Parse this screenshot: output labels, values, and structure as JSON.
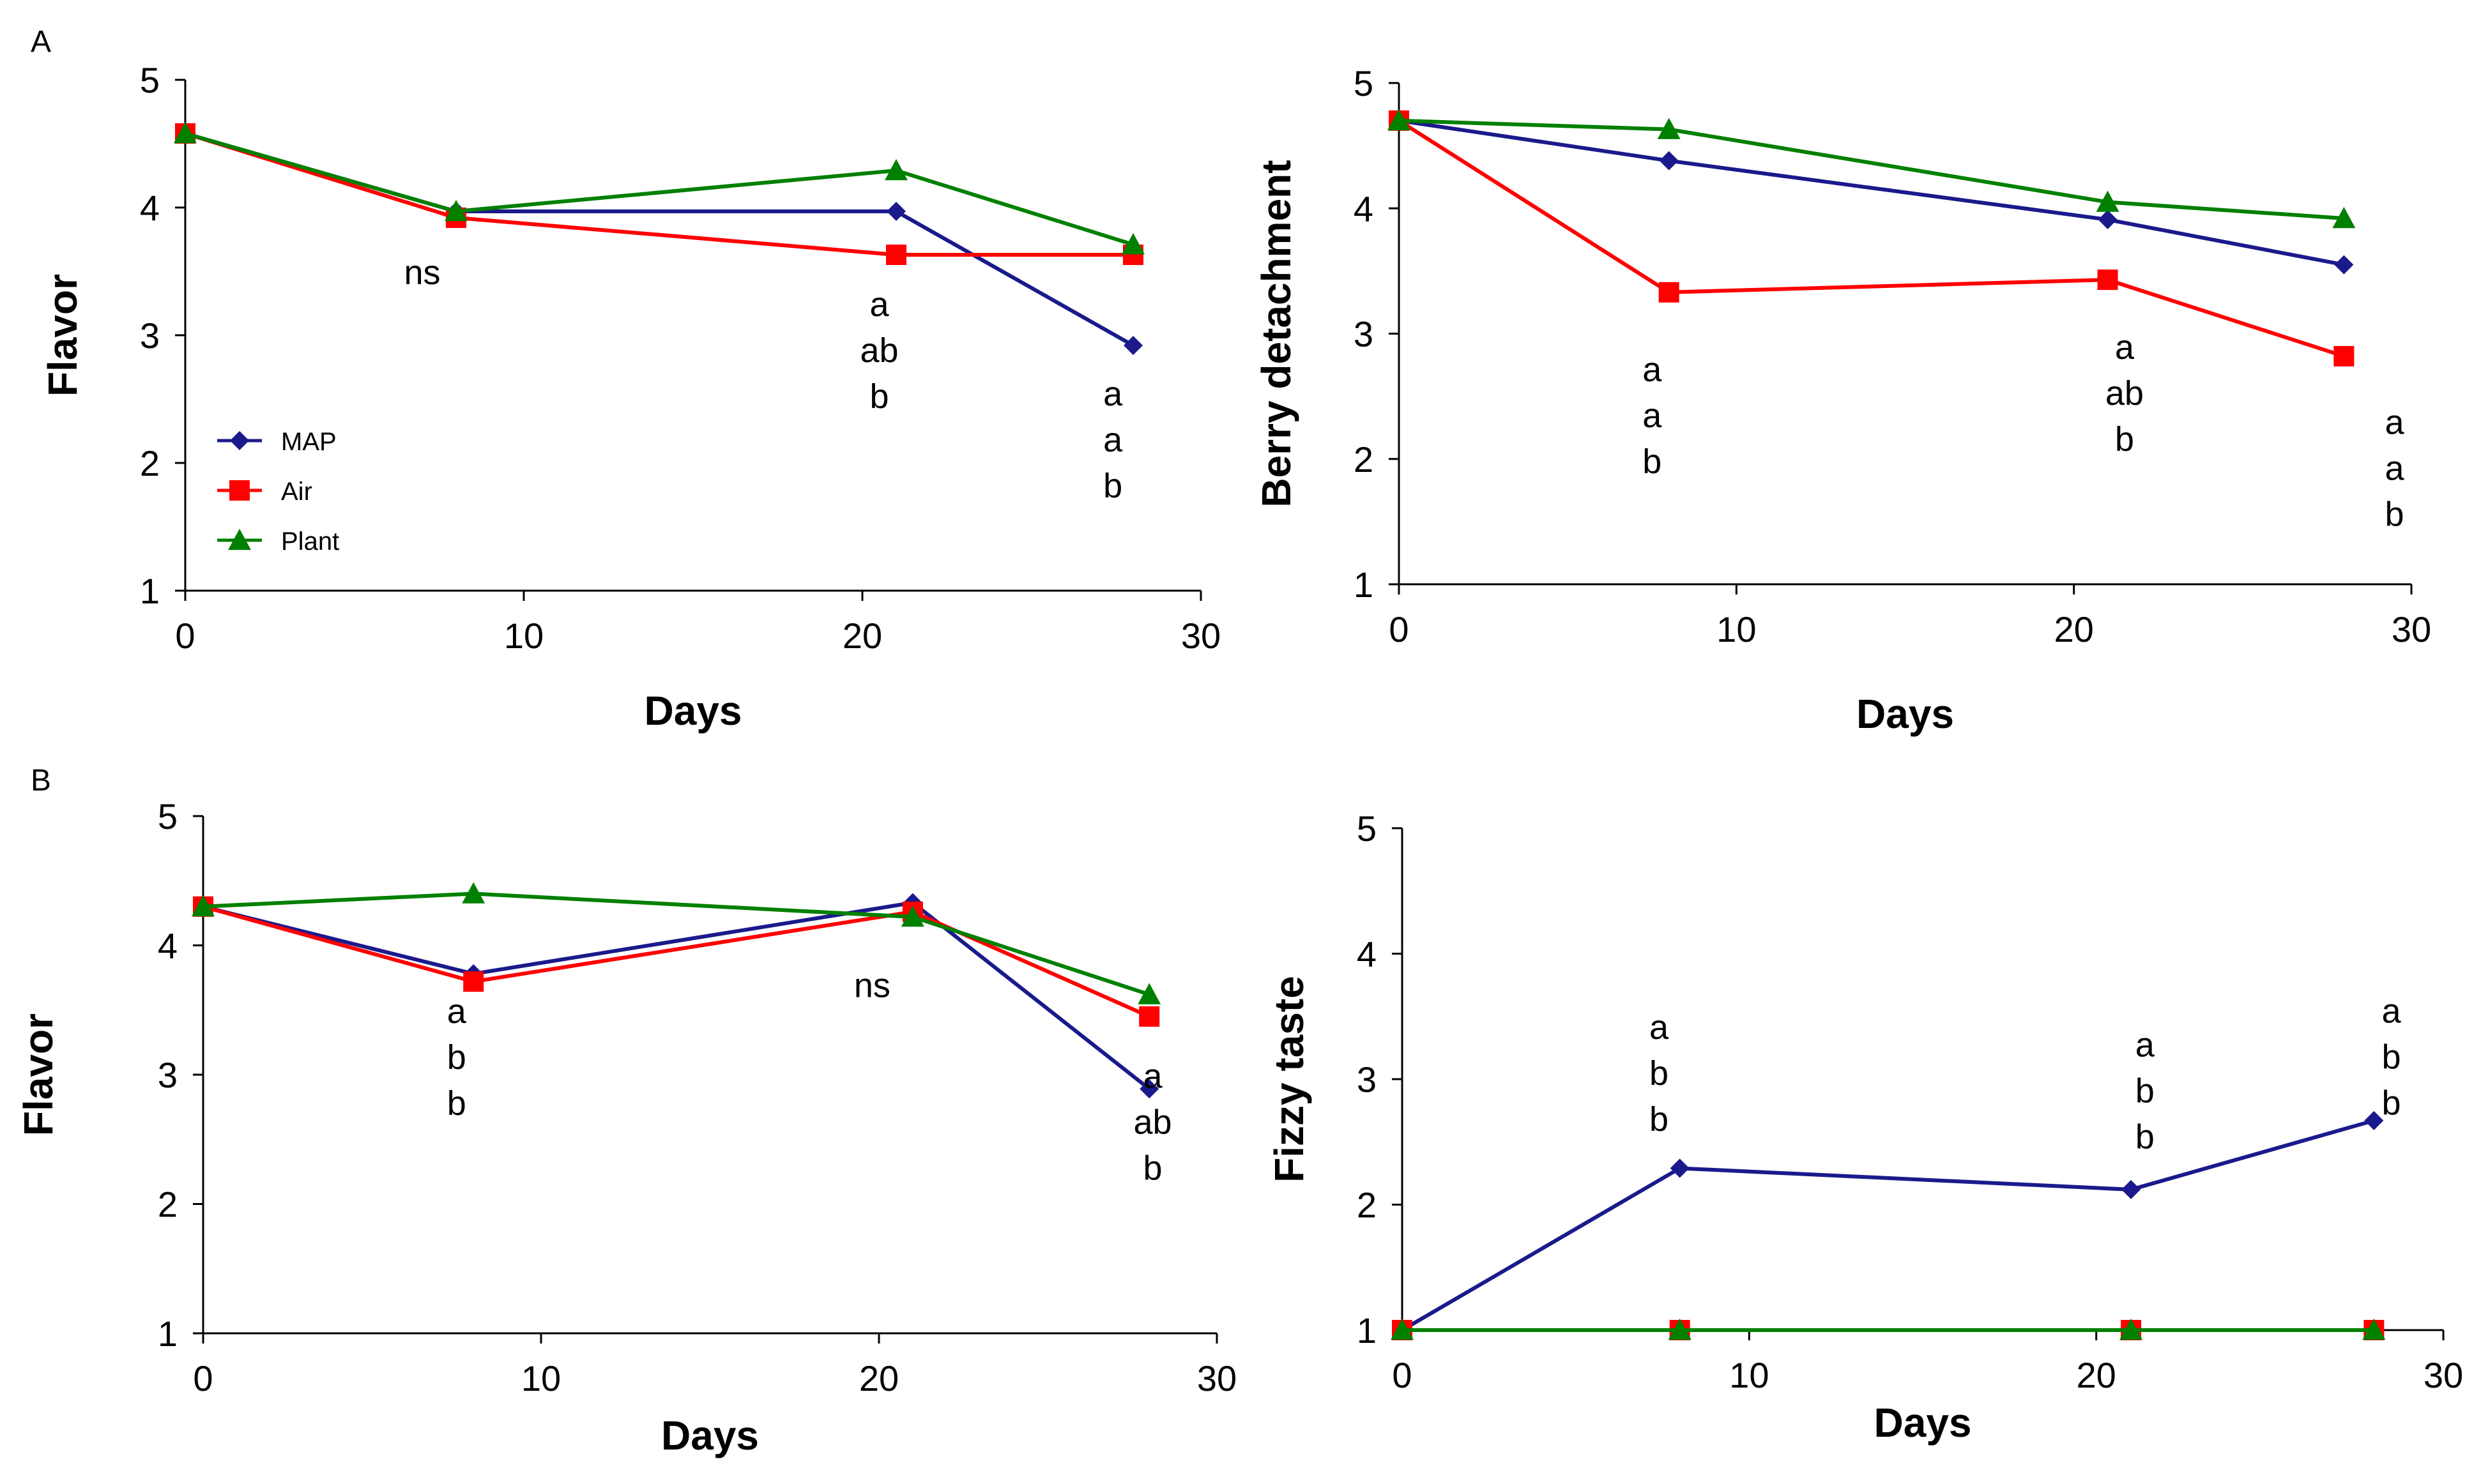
{
  "panels": {
    "A": "A",
    "B": "B"
  },
  "legend": [
    {
      "name": "MAP",
      "color": "#1a1a8c",
      "marker": "diamond"
    },
    {
      "name": "Air",
      "color": "#ff0000",
      "marker": "square"
    },
    {
      "name": "Plant",
      "color": "#008000",
      "marker": "triangle"
    }
  ],
  "chart_data": [
    {
      "type": "line",
      "title": "",
      "xlabel": "Days",
      "ylabel": "Flavor",
      "xlim": [
        0,
        30
      ],
      "ylim": [
        1,
        5
      ],
      "xticks": [
        0,
        10,
        20,
        30
      ],
      "yticks": [
        1,
        2,
        3,
        4,
        5
      ],
      "x": [
        0,
        8,
        21,
        28
      ],
      "series": [
        {
          "name": "MAP",
          "values": [
            4.58,
            3.97,
            3.97,
            2.92
          ]
        },
        {
          "name": "Air",
          "values": [
            4.58,
            3.92,
            3.63,
            3.63
          ]
        },
        {
          "name": "Plant",
          "values": [
            4.58,
            3.97,
            4.29,
            3.71
          ]
        }
      ],
      "annotations": [
        {
          "x": 7.0,
          "y": 3.4,
          "lines": [
            "ns"
          ]
        },
        {
          "x": 20.5,
          "y": 3.15,
          "lines": [
            "a",
            "ab",
            "b"
          ]
        },
        {
          "x": 27.4,
          "y": 2.45,
          "lines": [
            "a",
            "a",
            "b"
          ]
        }
      ],
      "legend": "left"
    },
    {
      "type": "line",
      "title": "",
      "xlabel": "Days",
      "ylabel": "Berry detachment",
      "xlim": [
        0,
        30
      ],
      "ylim": [
        1,
        5
      ],
      "xticks": [
        0,
        10,
        20,
        30
      ],
      "yticks": [
        1,
        2,
        3,
        4,
        5
      ],
      "x": [
        0,
        8,
        21,
        28
      ],
      "series": [
        {
          "name": "MAP",
          "values": [
            4.7,
            4.38,
            3.91,
            3.55
          ]
        },
        {
          "name": "Air",
          "values": [
            4.7,
            3.33,
            3.43,
            2.82
          ]
        },
        {
          "name": "Plant",
          "values": [
            4.7,
            4.63,
            4.05,
            3.92
          ]
        }
      ],
      "annotations": [
        {
          "x": 7.5,
          "y": 2.62,
          "lines": [
            "a",
            "a",
            "b"
          ]
        },
        {
          "x": 21.5,
          "y": 2.8,
          "lines": [
            "a",
            "ab",
            "b"
          ]
        },
        {
          "x": 29.5,
          "y": 2.2,
          "lines": [
            "a",
            "a",
            "b"
          ]
        }
      ]
    },
    {
      "type": "line",
      "title": "",
      "xlabel": "Days",
      "ylabel": "Flavor",
      "xlim": [
        0,
        30
      ],
      "ylim": [
        1,
        5
      ],
      "xticks": [
        0,
        10,
        20,
        30
      ],
      "yticks": [
        1,
        2,
        3,
        4,
        5
      ],
      "x": [
        0,
        8,
        21,
        28
      ],
      "series": [
        {
          "name": "MAP",
          "values": [
            4.3,
            3.78,
            4.33,
            2.89
          ]
        },
        {
          "name": "Air",
          "values": [
            4.3,
            3.72,
            4.26,
            3.45
          ]
        },
        {
          "name": "Plant",
          "values": [
            4.3,
            4.4,
            4.22,
            3.62
          ]
        }
      ],
      "annotations": [
        {
          "x": 7.5,
          "y": 3.4,
          "lines": [
            "a",
            "b",
            "b"
          ]
        },
        {
          "x": 19.8,
          "y": 3.6,
          "lines": [
            "ns"
          ]
        },
        {
          "x": 28.1,
          "y": 2.9,
          "lines": [
            "a",
            "ab",
            "b"
          ]
        }
      ]
    },
    {
      "type": "line",
      "title": "",
      "xlabel": "Days",
      "ylabel": "Fizzy taste",
      "xlim": [
        0,
        30
      ],
      "ylim": [
        1,
        5
      ],
      "xticks": [
        0,
        10,
        20,
        30
      ],
      "yticks": [
        1,
        2,
        3,
        4,
        5
      ],
      "x": [
        0,
        8,
        21,
        28
      ],
      "series": [
        {
          "name": "MAP",
          "values": [
            1.0,
            2.29,
            2.12,
            2.67
          ]
        },
        {
          "name": "Air",
          "values": [
            1.0,
            1.0,
            1.0,
            1.0
          ]
        },
        {
          "name": "Plant",
          "values": [
            1.0,
            1.0,
            1.0,
            1.0
          ]
        }
      ],
      "annotations": [
        {
          "x": 7.4,
          "y": 3.32,
          "lines": [
            "a",
            "b",
            "b"
          ]
        },
        {
          "x": 21.4,
          "y": 3.18,
          "lines": [
            "a",
            "b",
            "b"
          ]
        },
        {
          "x": 28.5,
          "y": 3.45,
          "lines": [
            "a",
            "b",
            "b"
          ]
        }
      ]
    }
  ]
}
